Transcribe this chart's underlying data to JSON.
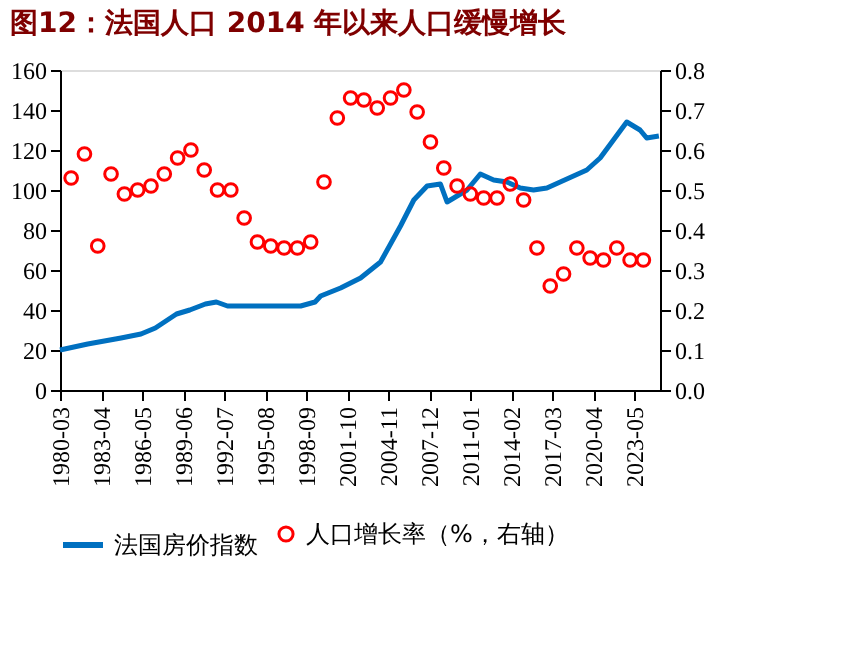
{
  "chart_data": {
    "type": "line",
    "title": "图12：法国人口 2014 年以来人口缓慢增长",
    "xlim": [
      "1980-03",
      "2025-04"
    ],
    "xticks": [
      "1980-03",
      "1983-04",
      "1986-05",
      "1989-06",
      "1992-07",
      "1995-08",
      "1998-09",
      "2001-10",
      "2004-11",
      "2007-12",
      "2011-01",
      "2014-02",
      "2017-03",
      "2020-04",
      "2023-05"
    ],
    "ylim": [
      0,
      160
    ],
    "yticks": [
      0,
      20,
      40,
      60,
      80,
      100,
      120,
      140,
      160
    ],
    "y2lim": [
      0,
      0.8
    ],
    "y2ticks": [
      {
        "value": 0,
        "label": "0.0"
      },
      {
        "value": 0.1,
        "label": "0.1"
      },
      {
        "value": 0.2,
        "label": "0.2"
      },
      {
        "value": 0.3,
        "label": "0.3"
      },
      {
        "value": 0.4,
        "label": "0.4"
      },
      {
        "value": 0.5,
        "label": "0.5"
      },
      {
        "value": 0.6,
        "label": "0.6"
      },
      {
        "value": 0.7,
        "label": "0.7"
      },
      {
        "value": 0.8,
        "label": "0.8"
      }
    ],
    "grid": false,
    "legend": "bottom",
    "series": [
      {
        "name": "法国房价指数",
        "color": "#0070c0",
        "marker": "none",
        "line_style": "solid",
        "x": [
          "1980-03",
          "1982-04",
          "1984-10",
          "1986-04",
          "1987-05",
          "1988-12",
          "1989-12",
          "1991-02",
          "1991-12",
          "1992-10",
          "1994-12",
          "1996-10",
          "1998-04",
          "1999-05",
          "1999-10",
          "2001-04",
          "2002-10",
          "2004-04",
          "2005-10",
          "2006-10",
          "2007-10",
          "2008-10",
          "2009-04",
          "2009-10",
          "2010-10",
          "2011-10",
          "2012-10",
          "2013-10",
          "2014-10",
          "2015-10",
          "2016-10",
          "2017-10",
          "2018-10",
          "2019-10",
          "2020-10",
          "2021-10",
          "2022-10",
          "2023-10",
          "2024-04",
          "2025-03"
        ],
        "values": [
          20,
          23,
          26,
          28,
          31,
          38,
          40,
          43,
          44,
          42,
          42,
          42,
          42,
          44,
          47,
          51,
          56,
          64,
          82,
          95,
          102,
          103,
          94,
          96,
          100,
          108,
          105,
          104,
          101,
          100,
          101,
          104,
          107,
          110,
          116,
          125,
          134,
          130,
          126,
          127
        ]
      },
      {
        "name": "人口增长率（%，右轴）",
        "type": "scatter",
        "axis": "y2",
        "color": "#ff0000",
        "marker": "circle",
        "x": [
          "1981-01",
          "1982-01",
          "1983-01",
          "1984-01",
          "1985-01",
          "1986-01",
          "1987-01",
          "1988-01",
          "1989-01",
          "1990-01",
          "1991-01",
          "1992-01",
          "1993-01",
          "1994-01",
          "1995-01",
          "1996-01",
          "1997-01",
          "1998-01",
          "1999-01",
          "2000-01",
          "2001-01",
          "2002-01",
          "2003-01",
          "2004-01",
          "2005-01",
          "2006-01",
          "2007-01",
          "2008-01",
          "2009-01",
          "2010-01",
          "2011-01",
          "2012-01",
          "2013-01",
          "2014-01",
          "2015-01",
          "2016-01",
          "2017-01",
          "2018-01",
          "2019-01",
          "2020-01",
          "2021-01",
          "2022-01",
          "2023-01",
          "2024-01"
        ],
        "values": [
          0.53,
          0.59,
          0.36,
          0.54,
          0.49,
          0.5,
          0.51,
          0.54,
          0.58,
          0.6,
          0.55,
          0.5,
          0.5,
          0.43,
          0.37,
          0.36,
          0.355,
          0.355,
          0.37,
          0.52,
          0.68,
          0.73,
          0.725,
          0.705,
          0.73,
          0.75,
          0.695,
          0.62,
          0.555,
          0.51,
          0.49,
          0.48,
          0.48,
          0.515,
          0.475,
          0.355,
          0.26,
          0.29,
          0.355,
          0.33,
          0.325,
          0.355,
          0.325,
          0.325
        ]
      }
    ]
  }
}
